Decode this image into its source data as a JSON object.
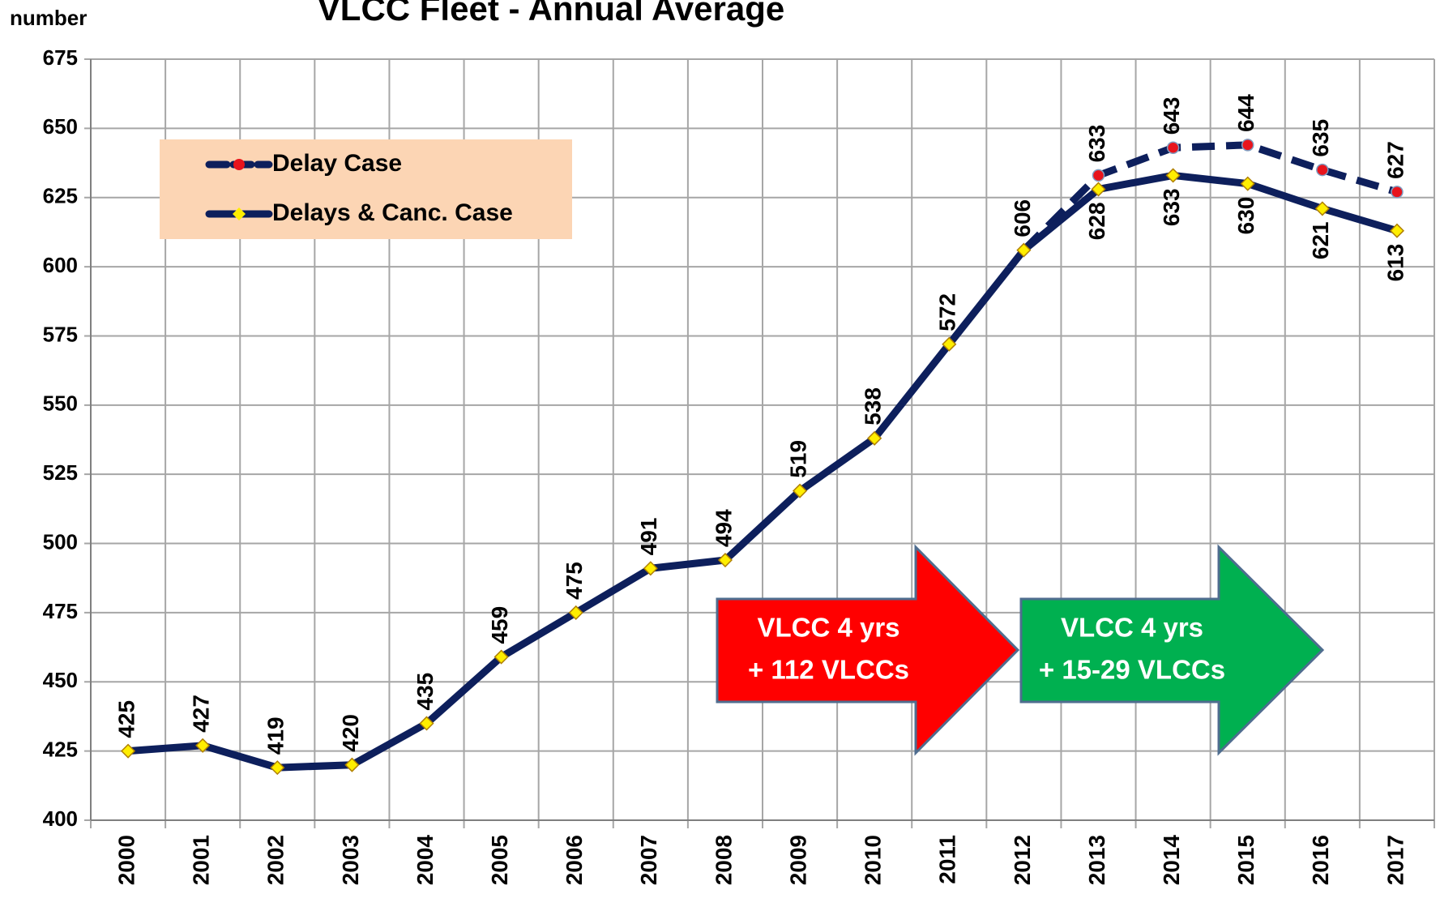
{
  "chart_data": {
    "type": "line",
    "title": "VLCC Fleet - Annual Average",
    "y_label": "number",
    "categories": [
      "2000",
      "2001",
      "2002",
      "2003",
      "2004",
      "2005",
      "2006",
      "2007",
      "2008",
      "2009",
      "2010",
      "2011",
      "2012",
      "2013",
      "2014",
      "2015",
      "2016",
      "2017"
    ],
    "series": [
      {
        "name": "Delay Case",
        "color": "#0d1f5c",
        "marker_color": "#e8141c",
        "dashed": true,
        "values": [
          null,
          null,
          null,
          null,
          null,
          null,
          null,
          null,
          null,
          null,
          null,
          null,
          606,
          633,
          643,
          644,
          635,
          627
        ]
      },
      {
        "name": "Delays & Canc. Case",
        "color": "#0d1f5c",
        "marker_color": "#ffee00",
        "dashed": false,
        "values": [
          425,
          427,
          419,
          420,
          435,
          459,
          475,
          491,
          494,
          519,
          538,
          572,
          606,
          628,
          633,
          630,
          621,
          613
        ]
      }
    ],
    "ylim": [
      400,
      675
    ],
    "yticks": [
      400,
      425,
      450,
      475,
      500,
      525,
      550,
      575,
      600,
      625,
      650,
      675
    ],
    "grid": true,
    "annotations": [
      {
        "lines": [
          "VLCC 4 yrs",
          "+ 112 VLCCs"
        ],
        "color": "#ff0000"
      },
      {
        "lines": [
          "VLCC 4 yrs",
          "+ 15-29 VLCCs"
        ],
        "color": "#00b050"
      }
    ]
  }
}
